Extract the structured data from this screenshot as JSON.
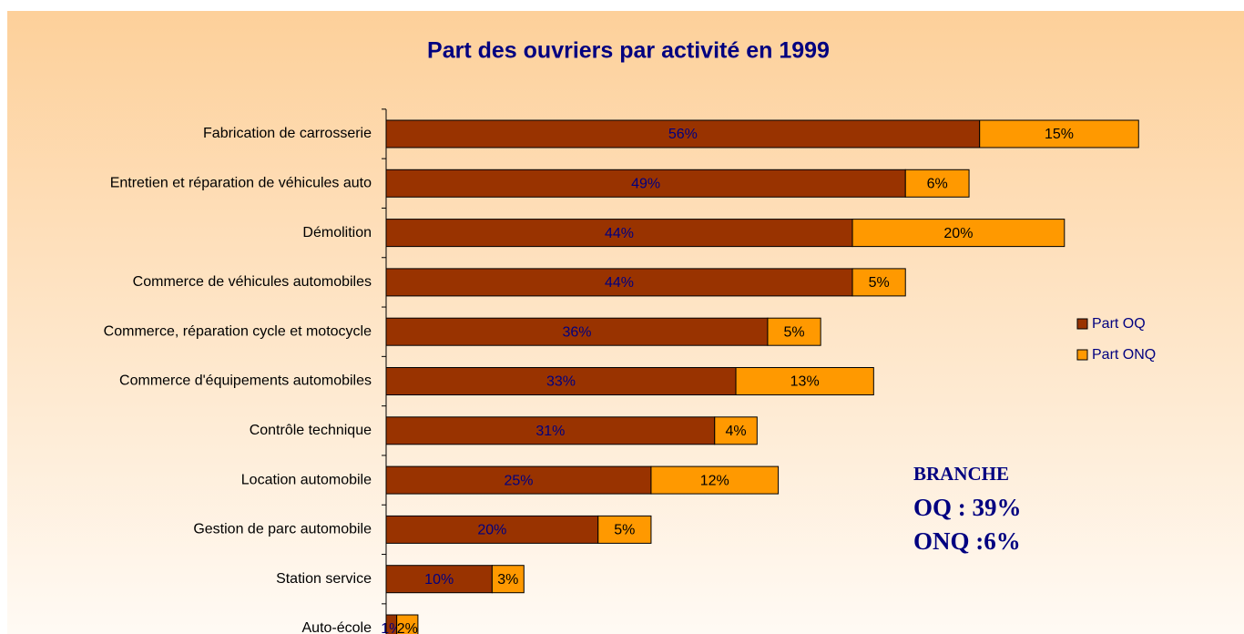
{
  "chart_data": {
    "type": "stacked-bar-horizontal",
    "title": "Part des ouvriers par activité en 1999",
    "categories": [
      "Fabrication de carrosserie",
      "Entretien et réparation de véhicules auto",
      "Démolition",
      "Commerce de véhicules automobiles",
      "Commerce, réparation cycle et motocycle",
      "Commerce d'équipements automobiles",
      "Contrôle technique",
      "Location automobile",
      "Gestion de parc automobile",
      "Station service",
      "Auto-école"
    ],
    "series": [
      {
        "name": "Part OQ",
        "color": "#993300",
        "values": [
          56,
          49,
          44,
          44,
          36,
          33,
          31,
          25,
          20,
          10,
          1
        ],
        "value_labels": [
          "56%",
          "49%",
          "44%",
          "44%",
          "36%",
          "33%",
          "31%",
          "25%",
          "20%",
          "10%",
          "1%"
        ]
      },
      {
        "name": "Part ONQ",
        "color": "#ff9900",
        "values": [
          15,
          6,
          20,
          5,
          5,
          13,
          4,
          12,
          5,
          3,
          2
        ],
        "value_labels": [
          "15%",
          "6%",
          "20%",
          "5%",
          "5%",
          "13%",
          "4%",
          "12%",
          "5%",
          "3%",
          "2%"
        ]
      }
    ],
    "xlim": [
      0,
      80
    ],
    "legend": "right",
    "annotation": [
      "BRANCHE",
      "OQ : 39%",
      "ONQ :6%"
    ]
  }
}
